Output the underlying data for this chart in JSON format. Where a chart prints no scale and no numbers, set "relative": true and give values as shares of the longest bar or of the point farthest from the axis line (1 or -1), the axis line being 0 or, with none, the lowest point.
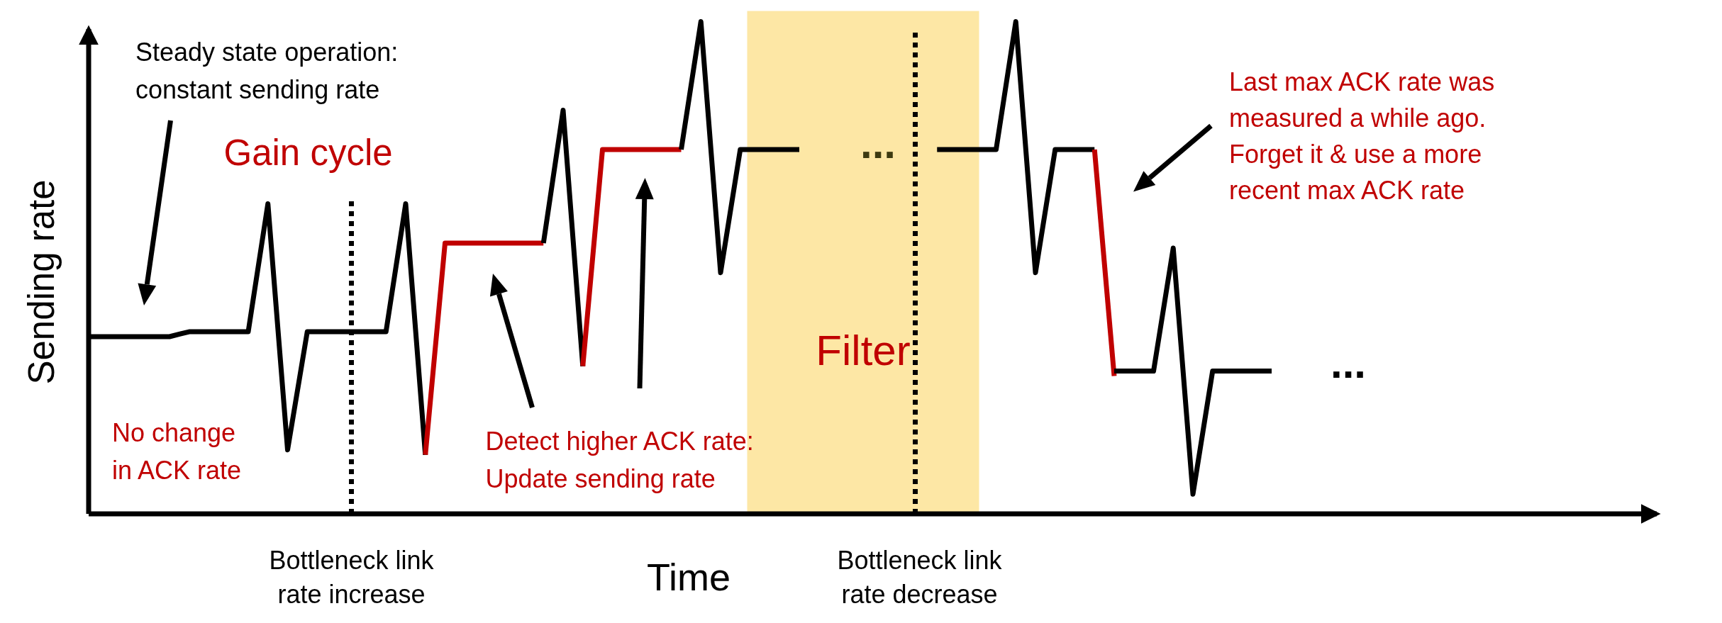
{
  "chart_data": {
    "type": "line",
    "relative": true,
    "xlabel": "Time",
    "ylabel": "Sending rate",
    "line_style": "solid",
    "categories": [
      null,
      null,
      null,
      null,
      null,
      null,
      null,
      null,
      null,
      null,
      null,
      null,
      null,
      null,
      null,
      null,
      null,
      null,
      null,
      null,
      null,
      null,
      null,
      null,
      null,
      null,
      null,
      null,
      null,
      null,
      null,
      null,
      null,
      null,
      null,
      null,
      null,
      null,
      null,
      null,
      null,
      null,
      null,
      null,
      null,
      null,
      null,
      null,
      null,
      null,
      null,
      null,
      null,
      null,
      null,
      null,
      null,
      null,
      null,
      null,
      null
    ],
    "series": [
      {
        "color": "#000000",
        "values": [
          0.36,
          0.36,
          0.36,
          0.36,
          0.36,
          0.37,
          0.37,
          0.37,
          0.37,
          0.63,
          0.13,
          0.37,
          0.37,
          0.37,
          0.37,
          0.37,
          0.63,
          0.12,
          null,
          null,
          null,
          null,
          null,
          null,
          null,
          null,
          null,
          null,
          null,
          null,
          null,
          null,
          null,
          null,
          null,
          null,
          null,
          null,
          null,
          null,
          null,
          null,
          null,
          null,
          null,
          null,
          null,
          null,
          null,
          null,
          null,
          null,
          null,
          null,
          null,
          null,
          null,
          null,
          null,
          null,
          null
        ]
      },
      {
        "color": "#c00000",
        "values": [
          null,
          null,
          null,
          null,
          null,
          null,
          null,
          null,
          null,
          null,
          null,
          null,
          null,
          null,
          null,
          null,
          null,
          0.12,
          0.55,
          0.55,
          0.55,
          0.55,
          0.55,
          0.55,
          null,
          null,
          null,
          null,
          null,
          null,
          null,
          null,
          null,
          null,
          null,
          null,
          null,
          null,
          null,
          null,
          null,
          null,
          null,
          null,
          null,
          null,
          null,
          null,
          null,
          null,
          null,
          null,
          null,
          null,
          null,
          null,
          null,
          null,
          null,
          null,
          null
        ]
      },
      {
        "color": "#000000",
        "values": [
          null,
          null,
          null,
          null,
          null,
          null,
          null,
          null,
          null,
          null,
          null,
          null,
          null,
          null,
          null,
          null,
          null,
          null,
          null,
          null,
          null,
          null,
          null,
          0.55,
          0.82,
          0.3,
          null,
          null,
          null,
          null,
          null,
          null,
          null,
          null,
          null,
          null,
          null,
          null,
          null,
          null,
          null,
          null,
          null,
          null,
          null,
          null,
          null,
          null,
          null,
          null,
          null,
          null,
          null,
          null,
          null,
          null,
          null,
          null,
          null,
          null,
          null
        ]
      },
      {
        "color": "#c00000",
        "values": [
          null,
          null,
          null,
          null,
          null,
          null,
          null,
          null,
          null,
          null,
          null,
          null,
          null,
          null,
          null,
          null,
          null,
          null,
          null,
          null,
          null,
          null,
          null,
          null,
          null,
          0.3,
          0.74,
          0.74,
          0.74,
          0.74,
          0.74,
          null,
          null,
          null,
          null,
          null,
          null,
          null,
          null,
          null,
          null,
          null,
          null,
          null,
          null,
          null,
          null,
          null,
          null,
          null,
          null,
          null,
          null,
          null,
          null,
          null,
          null,
          null,
          null,
          null,
          null
        ]
      },
      {
        "color": "#000000",
        "values": [
          null,
          null,
          null,
          null,
          null,
          null,
          null,
          null,
          null,
          null,
          null,
          null,
          null,
          null,
          null,
          null,
          null,
          null,
          null,
          null,
          null,
          null,
          null,
          null,
          null,
          null,
          null,
          null,
          null,
          null,
          0.74,
          1.0,
          0.49,
          0.74,
          0.74,
          0.74,
          0.74,
          null,
          null,
          null,
          null,
          null,
          null,
          null,
          null,
          null,
          null,
          null,
          null,
          null,
          null,
          null,
          null,
          null,
          null,
          null,
          null,
          null,
          null,
          null,
          null
        ]
      },
      {
        "color": "#000000",
        "values": [
          null,
          null,
          null,
          null,
          null,
          null,
          null,
          null,
          null,
          null,
          null,
          null,
          null,
          null,
          null,
          null,
          null,
          null,
          null,
          null,
          null,
          null,
          null,
          null,
          null,
          null,
          null,
          null,
          null,
          null,
          null,
          null,
          null,
          null,
          null,
          null,
          null,
          null,
          null,
          null,
          null,
          null,
          null,
          0.74,
          0.74,
          0.74,
          0.74,
          1.0,
          0.49,
          0.74,
          0.74,
          0.74,
          null,
          null,
          null,
          null,
          null,
          null,
          null,
          null,
          null
        ]
      },
      {
        "color": "#c00000",
        "values": [
          null,
          null,
          null,
          null,
          null,
          null,
          null,
          null,
          null,
          null,
          null,
          null,
          null,
          null,
          null,
          null,
          null,
          null,
          null,
          null,
          null,
          null,
          null,
          null,
          null,
          null,
          null,
          null,
          null,
          null,
          null,
          null,
          null,
          null,
          null,
          null,
          null,
          null,
          null,
          null,
          null,
          null,
          null,
          null,
          null,
          null,
          null,
          null,
          null,
          null,
          null,
          0.74,
          0.28,
          null,
          null,
          null,
          null,
          null,
          null,
          null,
          null
        ]
      },
      {
        "color": "#000000",
        "values": [
          null,
          null,
          null,
          null,
          null,
          null,
          null,
          null,
          null,
          null,
          null,
          null,
          null,
          null,
          null,
          null,
          null,
          null,
          null,
          null,
          null,
          null,
          null,
          null,
          null,
          null,
          null,
          null,
          null,
          null,
          null,
          null,
          null,
          null,
          null,
          null,
          null,
          null,
          null,
          null,
          null,
          null,
          null,
          null,
          null,
          null,
          null,
          null,
          null,
          null,
          null,
          null,
          0.29,
          0.29,
          0.29,
          0.54,
          0.04,
          0.29,
          0.29,
          0.29,
          0.29
        ]
      }
    ],
    "annotations": [
      "Steady state operation: constant sending rate",
      "Gain cycle",
      "No change in ACK rate",
      "Detect higher ACK rate: Update sending rate",
      "Last max ACK rate was measured a while ago. Forget it & use a more recent max ACK rate",
      "...",
      "...",
      "Filter",
      "Bottleneck link rate increase",
      "Bottleneck link rate decrease"
    ]
  }
}
